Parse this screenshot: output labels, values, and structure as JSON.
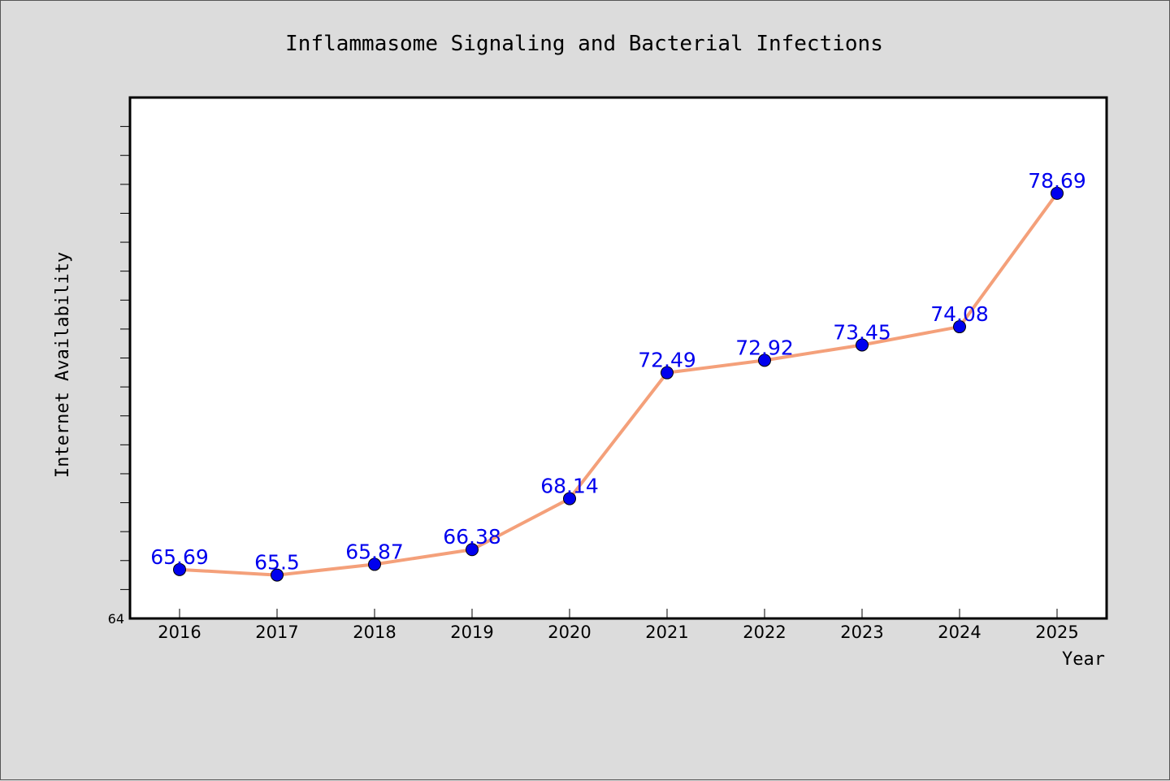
{
  "chart_data": {
    "type": "line",
    "title": "Inflammasome Signaling and Bacterial Infections",
    "xlabel": "Year",
    "ylabel": "Internet Availability",
    "categories": [
      "2016",
      "2017",
      "2018",
      "2019",
      "2020",
      "2021",
      "2022",
      "2023",
      "2024",
      "2025"
    ],
    "series": [
      {
        "values": [
          65.69,
          65.5,
          65.87,
          66.38,
          68.14,
          72.49,
          72.92,
          73.45,
          74.08,
          78.69
        ],
        "labels": [
          "65.69",
          "65.5",
          "65.87",
          "66.38",
          "68.14",
          "72.49",
          "72.92",
          "73.45",
          "74.08",
          "78.69"
        ]
      }
    ],
    "ylim": [
      64,
      82
    ],
    "y_tick_labels": [
      "64"
    ],
    "grid": false,
    "legend": "none",
    "colors": {
      "line": "#f4a07a",
      "marker": "#0000ee",
      "label": "#0000ee",
      "background": "#dcdcdc",
      "plot_background": "#ffffff"
    }
  }
}
